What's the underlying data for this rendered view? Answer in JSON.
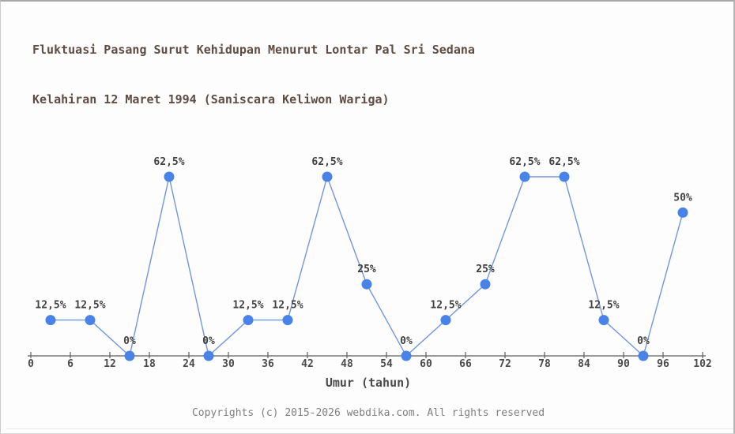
{
  "header": {
    "title_line1": "Fluktuasi Pasang Surut Kehidupan Menurut Lontar Pal Sri Sedana",
    "title_line2": "Kelahiran 12 Maret 1994 (Saniscara Keliwon Wariga)"
  },
  "chart_data": {
    "type": "line",
    "title": "Fluktuasi Pasang Surut Kehidupan Menurut Lontar Pal Sri Sedana Kelahiran 12 Maret 1994 (Saniscara Keliwon Wariga)",
    "xlabel": "Umur (tahun)",
    "x": [
      3,
      9,
      15,
      21,
      27,
      33,
      39,
      45,
      51,
      57,
      63,
      69,
      75,
      81,
      87,
      93,
      99
    ],
    "values": [
      12.5,
      12.5,
      0,
      62.5,
      0,
      12.5,
      12.5,
      62.5,
      25,
      0,
      12.5,
      25,
      62.5,
      62.5,
      12.5,
      0,
      50
    ],
    "point_labels": [
      "12,5%",
      "12,5%",
      "0%",
      "62,5%",
      "0%",
      "12,5%",
      "12,5%",
      "62,5%",
      "25%",
      "0%",
      "12,5%",
      "25%",
      "62,5%",
      "62,5%",
      "12,5%",
      "0%",
      "50%"
    ],
    "x_ticks": [
      0,
      6,
      12,
      18,
      24,
      30,
      36,
      42,
      48,
      54,
      60,
      66,
      72,
      78,
      84,
      90,
      96,
      102
    ],
    "xlim": [
      0,
      102
    ],
    "ylim": [
      0,
      100
    ],
    "grid": false,
    "legend": false,
    "y_axis_shown": false,
    "line_color": "#7196e0",
    "marker_color": "#4a83e8",
    "axis_color": "#5f5f5f",
    "point_label_color": "#404040",
    "tick_label_color": "#4a4a4a"
  },
  "footer": {
    "copyright": "Copyrights (c) 2015-2026 webdika.com. All rights reserved"
  }
}
